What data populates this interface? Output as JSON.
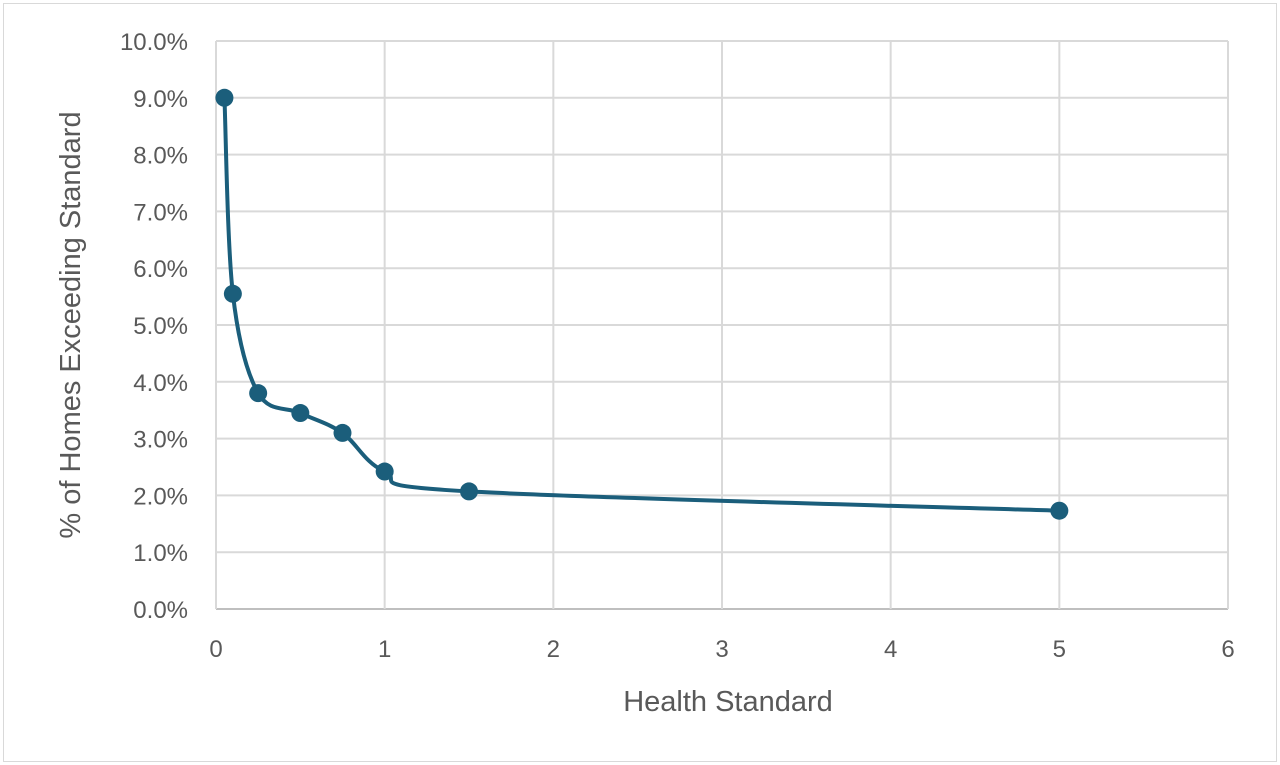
{
  "chart_data": {
    "type": "scatter",
    "title": "",
    "xlabel": "Health Standard",
    "ylabel": "% of Homes Exceeding Standard",
    "xlim": [
      0,
      6
    ],
    "ylim": [
      0,
      10
    ],
    "x_ticks": [
      "0",
      "1",
      "2",
      "3",
      "4",
      "5",
      "6"
    ],
    "y_ticks": [
      "0.0%",
      "1.0%",
      "2.0%",
      "3.0%",
      "4.0%",
      "5.0%",
      "6.0%",
      "7.0%",
      "8.0%",
      "9.0%",
      "10.0%"
    ],
    "grid": true,
    "smooth_line": true,
    "legend": "none",
    "series": [
      {
        "color": "#1b5e7b",
        "points": [
          {
            "x": 0.05,
            "y": 9.0
          },
          {
            "x": 0.1,
            "y": 5.55
          },
          {
            "x": 0.25,
            "y": 3.8
          },
          {
            "x": 0.5,
            "y": 3.45
          },
          {
            "x": 0.75,
            "y": 3.1
          },
          {
            "x": 1.0,
            "y": 2.42
          },
          {
            "x": 1.5,
            "y": 2.07
          },
          {
            "x": 5.0,
            "y": 1.73
          }
        ]
      }
    ]
  }
}
